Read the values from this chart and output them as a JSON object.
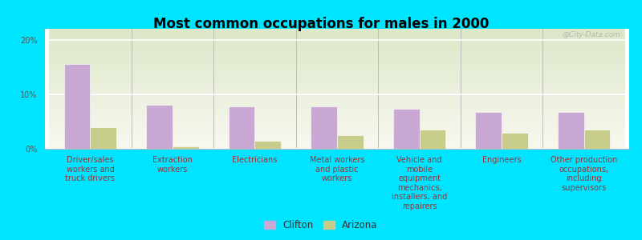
{
  "title": "Most common occupations for males in 2000",
  "categories": [
    "Driver/sales\nworkers and\ntruck drivers",
    "Extraction\nworkers",
    "Electricians",
    "Metal workers\nand plastic\nworkers",
    "Vehicle and\nmobile\nequipment\nmechanics,\ninstallers, and\nrepairers",
    "Engineers",
    "Other production\noccupations,\nincluding\nsupervisors"
  ],
  "clifton_values": [
    15.5,
    8.0,
    7.8,
    7.8,
    7.3,
    6.8,
    6.8
  ],
  "arizona_values": [
    4.0,
    0.4,
    1.5,
    2.5,
    3.5,
    3.0,
    3.5
  ],
  "clifton_color": "#c9a8d4",
  "arizona_color": "#c8cc8a",
  "background_outer": "#00e5ff",
  "background_inner_top": "#dce8c8",
  "background_inner_bottom": "#f5f5ee",
  "ylim": [
    0,
    22
  ],
  "yticks": [
    0,
    10,
    20
  ],
  "ytick_labels": [
    "0%",
    "10%",
    "20%"
  ],
  "bar_width": 0.32,
  "legend_labels": [
    "Clifton",
    "Arizona"
  ],
  "title_fontsize": 12,
  "tick_fontsize": 7,
  "legend_fontsize": 8.5,
  "watermark": "@City-Data.com"
}
